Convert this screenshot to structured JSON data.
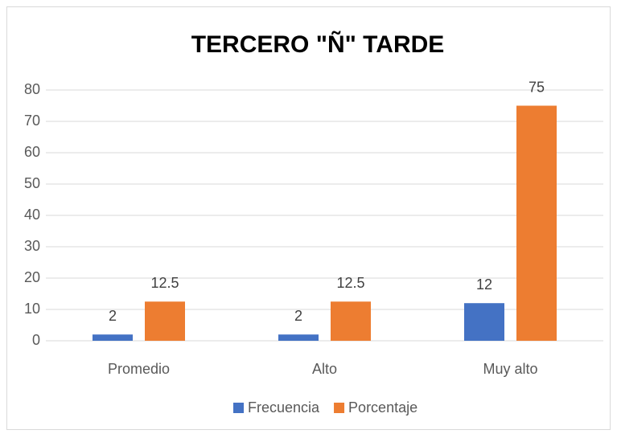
{
  "chart_data": {
    "type": "bar",
    "title": "TERCERO \"Ñ\" TARDE",
    "categories": [
      "Promedio",
      "Alto",
      "Muy alto"
    ],
    "series": [
      {
        "name": "Frecuencia",
        "color": "#4472c4",
        "values": [
          2,
          2,
          12
        ]
      },
      {
        "name": "Porcentaje",
        "color": "#ed7d31",
        "values": [
          12.5,
          12.5,
          75
        ]
      }
    ],
    "ylim": [
      0,
      80
    ],
    "yticks": [
      0,
      10,
      20,
      30,
      40,
      50,
      60,
      70,
      80
    ],
    "grid": true,
    "legend": "bottom"
  }
}
